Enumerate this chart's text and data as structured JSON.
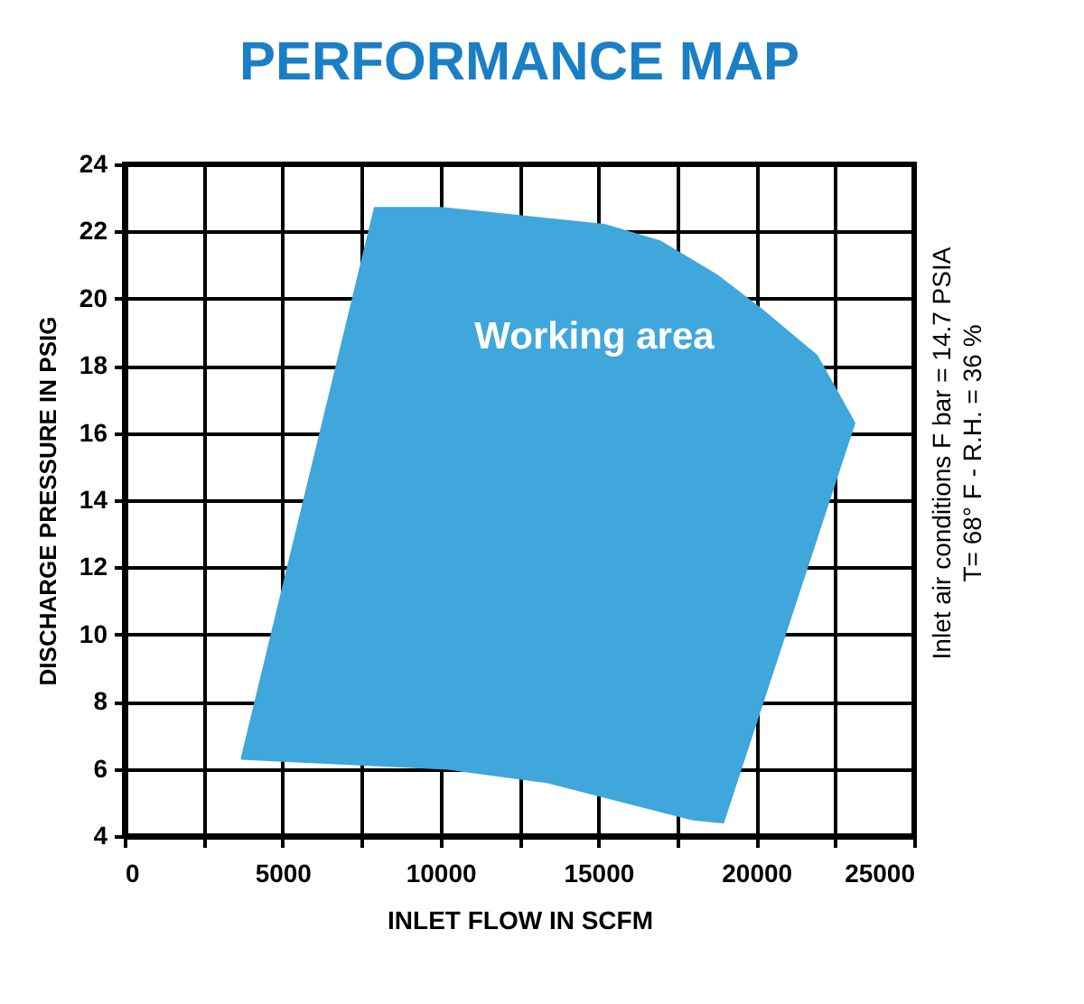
{
  "chart_data": {
    "type": "area",
    "title": "PERFORMANCE MAP",
    "xlabel": "INLET FLOW IN SCFM",
    "ylabel": "DISCHARGE PRESSURE IN PSIG",
    "series": [
      {
        "color": "#3fa7db",
        "x": [
          3700,
          7920,
          10040,
          15190,
          16970,
          18750,
          20140,
          21920,
          23110,
          18950,
          17960,
          13400,
          10240,
          3700
        ],
        "values": [
          6.3,
          22.7,
          22.7,
          22.2,
          21.7,
          20.7,
          19.7,
          18.3,
          16.3,
          4.4,
          4.5,
          5.6,
          6.0,
          6.3
        ]
      }
    ],
    "xlim": [
      0,
      25000
    ],
    "ylim": [
      4,
      24
    ],
    "xticks": [
      0,
      {
        "value": 2500,
        "label": null
      },
      5000,
      {
        "value": 7500,
        "label": null
      },
      10000,
      {
        "value": 12500,
        "label": null
      },
      15000,
      {
        "value": 17500,
        "label": null
      },
      20000,
      {
        "value": 22500,
        "label": null
      },
      25000
    ],
    "yticks": [
      4,
      6,
      8,
      10,
      12,
      14,
      16,
      18,
      20,
      22,
      24
    ],
    "grid": true,
    "annotations": [
      "Working area",
      "Inlet air conditions  F bar = 14.7 PSIA",
      "T= 68° F - R.H. = 36 %"
    ]
  }
}
